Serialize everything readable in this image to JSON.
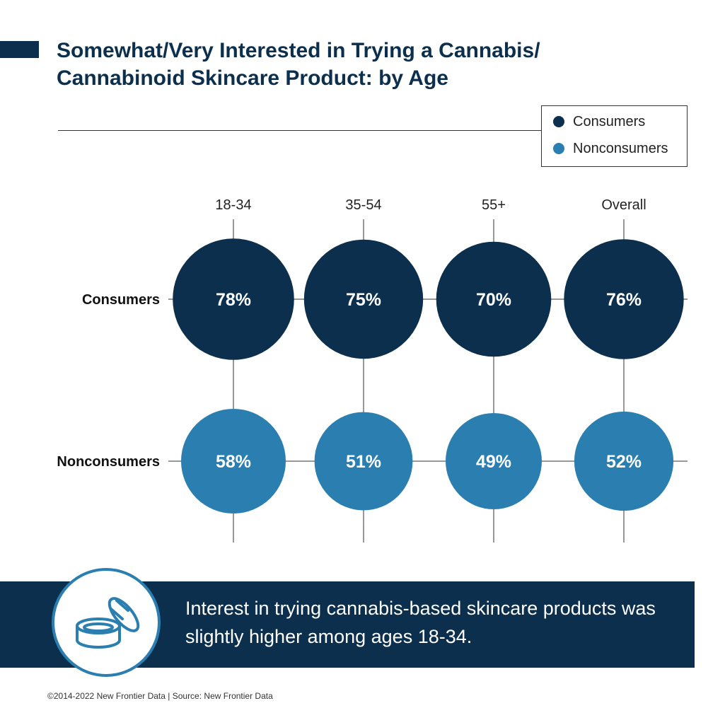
{
  "header": {
    "title": "Somewhat/Very Interested in Trying a Cannabis/ Cannabinoid Skincare Product: by Age"
  },
  "legend": {
    "items": [
      {
        "label": "Consumers",
        "color": "#0b2f4d"
      },
      {
        "label": "Nonconsumers",
        "color": "#2b7fb0"
      }
    ]
  },
  "chart_data": {
    "type": "bubble",
    "title": "Somewhat/Very Interested in Trying a Cannabis/ Cannabinoid Skincare Product: by Age",
    "categories": [
      "18-34",
      "35-54",
      "55+",
      "Overall"
    ],
    "unit": "%",
    "series": [
      {
        "name": "Consumers",
        "color": "#0b2f4d",
        "values": [
          78,
          75,
          70,
          76
        ]
      },
      {
        "name": "Nonconsumers",
        "color": "#2b7fb0",
        "values": [
          58,
          51,
          49,
          52
        ]
      }
    ],
    "legend_position": "top-right"
  },
  "callout": {
    "text": "Interest in trying cannabis-based skincare products was slightly higher among ages 18-34.",
    "icon": "skincare-jar-icon"
  },
  "footer": {
    "text": "©2014-2022  New Frontier Data | Source: New Frontier Data"
  }
}
